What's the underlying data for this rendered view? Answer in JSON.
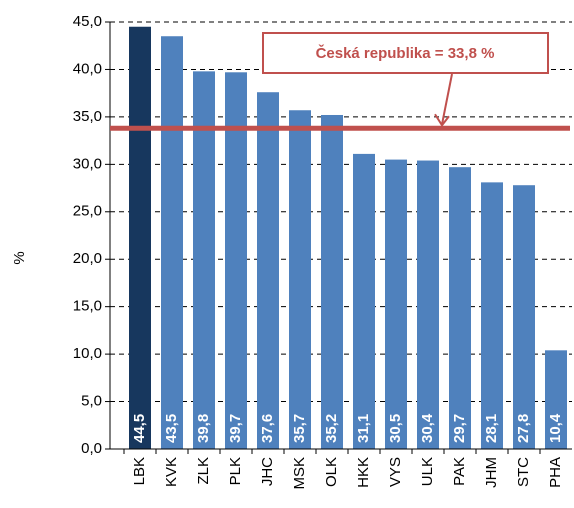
{
  "chart_data": {
    "type": "bar",
    "y_label": "%",
    "categories": [
      "LBK",
      "KVK",
      "ZLK",
      "PLK",
      "JHC",
      "MSK",
      "OLK",
      "HKK",
      "VYS",
      "ULK",
      "PAK",
      "JHM",
      "STC",
      "PHA"
    ],
    "values": [
      44.5,
      43.5,
      39.8,
      39.7,
      37.6,
      35.7,
      35.2,
      31.1,
      30.5,
      30.4,
      29.7,
      28.1,
      27.8,
      10.4
    ],
    "value_labels": [
      "44,5",
      "43,5",
      "39,8",
      "39,7",
      "37,6",
      "35,7",
      "35,2",
      "31,1",
      "30,5",
      "30,4",
      "29,7",
      "28,1",
      "27,8",
      "10,4"
    ],
    "colors": [
      "#17375e",
      "#4f81bd",
      "#4f81bd",
      "#4f81bd",
      "#4f81bd",
      "#4f81bd",
      "#4f81bd",
      "#4f81bd",
      "#4f81bd",
      "#4f81bd",
      "#4f81bd",
      "#4f81bd",
      "#4f81bd",
      "#4f81bd"
    ],
    "ylim": [
      0,
      45
    ],
    "yticks": [
      {
        "value": 0,
        "label": "0,0"
      },
      {
        "value": 5,
        "label": "5,0"
      },
      {
        "value": 10,
        "label": "10,0"
      },
      {
        "value": 15,
        "label": "15,0"
      },
      {
        "value": 20,
        "label": "20,0"
      },
      {
        "value": 25,
        "label": "25,0"
      },
      {
        "value": 30,
        "label": "30,0"
      },
      {
        "value": 35,
        "label": "35,0"
      },
      {
        "value": 40,
        "label": "40,0"
      },
      {
        "value": 45,
        "label": "45,0"
      }
    ],
    "grid": true,
    "reference_line": {
      "value": 33.8,
      "label": "Česká republika = 33,8 %",
      "color": "#c0504d"
    }
  }
}
